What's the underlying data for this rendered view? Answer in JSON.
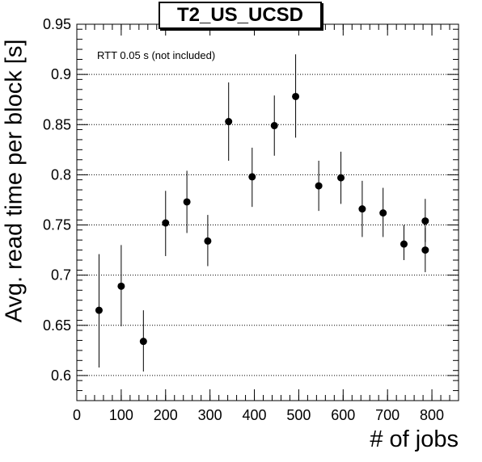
{
  "chart_data": {
    "type": "scatter",
    "title": "T2_US_UCSD",
    "annotation": "RTT 0.05 s (not included)",
    "xlabel": "# of jobs",
    "ylabel": "Avg. read time per block [s]",
    "xlim": [
      0,
      860
    ],
    "ylim": [
      0.575,
      0.95
    ],
    "x_ticks": [
      0,
      100,
      200,
      300,
      400,
      500,
      600,
      700,
      800
    ],
    "y_ticks": [
      0.6,
      0.65,
      0.7,
      0.75,
      0.8,
      0.85,
      0.9,
      0.95
    ],
    "grid": "horizontal dotted",
    "series": [
      {
        "points": [
          {
            "x": 50,
            "y": 0.665,
            "err": [
              0.608,
              0.721
            ]
          },
          {
            "x": 100,
            "y": 0.689,
            "err": [
              0.649,
              0.73
            ]
          },
          {
            "x": 150,
            "y": 0.634,
            "err": [
              0.604,
              0.665
            ]
          },
          {
            "x": 200,
            "y": 0.752,
            "err": [
              0.719,
              0.784
            ]
          },
          {
            "x": 248,
            "y": 0.773,
            "err": [
              0.742,
              0.804
            ]
          },
          {
            "x": 295,
            "y": 0.734,
            "err": [
              0.709,
              0.76
            ]
          },
          {
            "x": 342,
            "y": 0.853,
            "err": [
              0.814,
              0.892
            ]
          },
          {
            "x": 395,
            "y": 0.798,
            "err": [
              0.768,
              0.827
            ]
          },
          {
            "x": 445,
            "y": 0.849,
            "err": [
              0.819,
              0.879
            ]
          },
          {
            "x": 493,
            "y": 0.878,
            "err": [
              0.837,
              0.92
            ]
          },
          {
            "x": 545,
            "y": 0.789,
            "err": [
              0.764,
              0.814
            ]
          },
          {
            "x": 595,
            "y": 0.797,
            "err": [
              0.771,
              0.823
            ]
          },
          {
            "x": 643,
            "y": 0.766,
            "err": [
              0.738,
              0.794
            ]
          },
          {
            "x": 690,
            "y": 0.762,
            "err": [
              0.738,
              0.787
            ]
          },
          {
            "x": 737,
            "y": 0.731,
            "err": [
              0.715,
              0.75
            ]
          },
          {
            "x": 785,
            "y": 0.754,
            "err": [
              0.733,
              0.776
            ]
          },
          {
            "x": 785,
            "y": 0.725,
            "err": [
              0.703,
              0.747
            ]
          }
        ]
      }
    ]
  }
}
